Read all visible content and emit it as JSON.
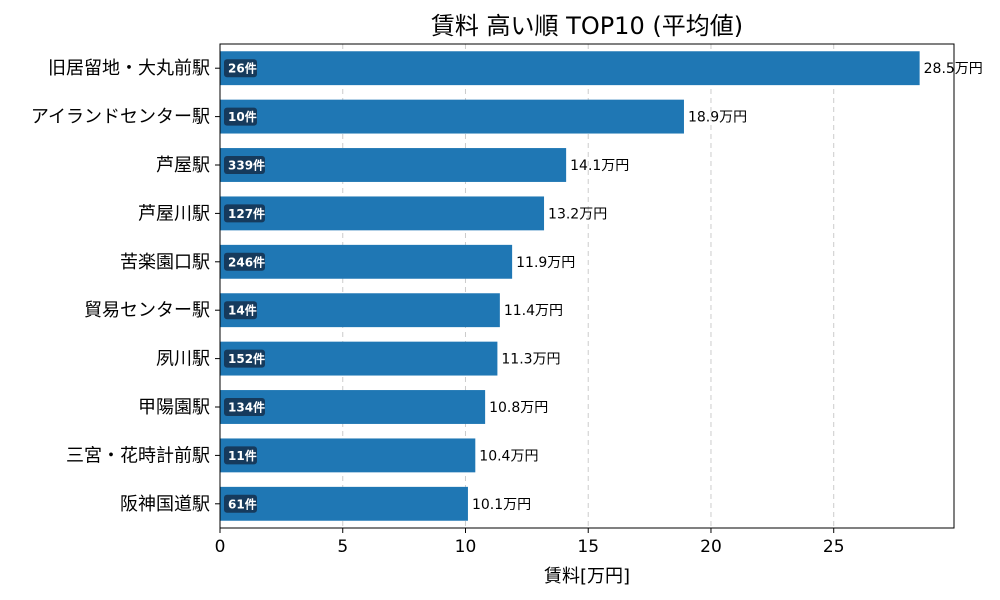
{
  "chart_data": {
    "type": "bar",
    "orientation": "horizontal",
    "title": "賃料 高い順 TOP10 (平均値)",
    "xlabel": "賃料[万円]",
    "ylabel": "",
    "xlim": [
      0,
      29.9
    ],
    "xticks": [
      0,
      5,
      10,
      15,
      20,
      25
    ],
    "grid": "x-dashed",
    "bar_color": "#1f77b4",
    "badge_color": "#163a5c",
    "categories": [
      "旧居留地・大丸前駅",
      "アイランドセンター駅",
      "芦屋駅",
      "芦屋川駅",
      "苦楽園口駅",
      "貿易センター駅",
      "夙川駅",
      "甲陽園駅",
      "三宮・花時計前駅",
      "阪神国道駅"
    ],
    "values": [
      28.5,
      18.9,
      14.1,
      13.2,
      11.9,
      11.4,
      11.3,
      10.8,
      10.4,
      10.1
    ],
    "value_labels": [
      "28.5万円",
      "18.9万円",
      "14.1万円",
      "13.2万円",
      "11.9万円",
      "11.4万円",
      "11.3万円",
      "10.8万円",
      "10.4万円",
      "10.1万円"
    ],
    "counts": [
      "26件",
      "10件",
      "339件",
      "127件",
      "246件",
      "14件",
      "152件",
      "134件",
      "11件",
      "61件"
    ]
  }
}
